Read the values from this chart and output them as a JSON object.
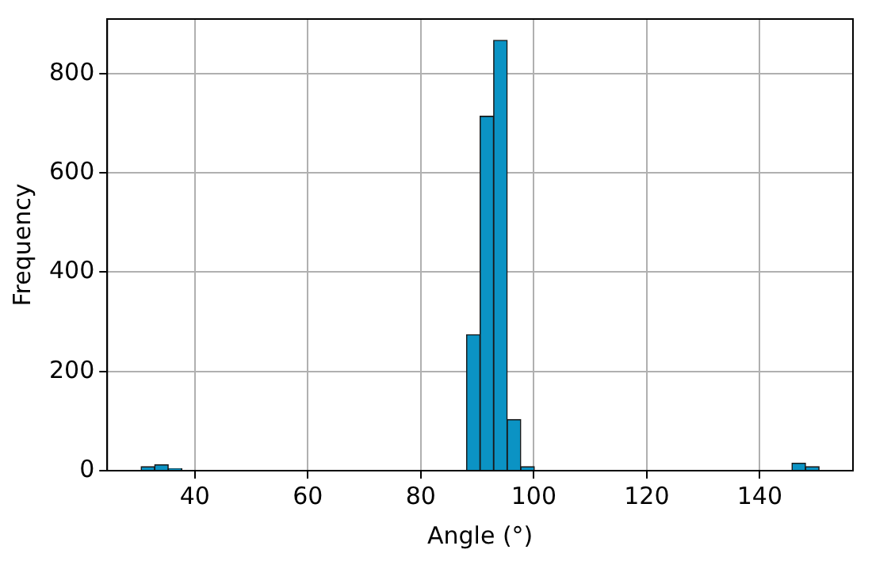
{
  "chart_data": {
    "type": "histogram",
    "xlabel": "Angle (°)",
    "ylabel": "Frequency",
    "bins": [
      30.5,
      32.9,
      35.3,
      37.7,
      40.1,
      42.5,
      44.9,
      47.3,
      49.7,
      52.1,
      54.5,
      56.9,
      59.3,
      61.7,
      64.1,
      66.5,
      68.9,
      71.3,
      73.7,
      76.1,
      78.5,
      80.9,
      83.3,
      85.7,
      88.1,
      90.5,
      92.9,
      95.3,
      97.7,
      100.1,
      102.5,
      104.9,
      107.3,
      109.7,
      112.1,
      114.5,
      116.9,
      119.3,
      121.7,
      124.1,
      126.5,
      128.9,
      131.3,
      133.7,
      136.1,
      138.5,
      140.9,
      143.3,
      145.7,
      148.1,
      150.5
    ],
    "values": [
      8,
      12,
      4,
      0,
      0,
      0,
      0,
      0,
      0,
      0,
      0,
      0,
      0,
      0,
      0,
      0,
      0,
      0,
      0,
      0,
      0,
      0,
      0,
      0,
      274,
      714,
      867,
      103,
      8,
      0,
      0,
      0,
      0,
      0,
      0,
      0,
      0,
      0,
      0,
      0,
      0,
      0,
      0,
      0,
      0,
      0,
      0,
      0,
      15,
      8
    ],
    "color": "#0b93c4",
    "xlim": [
      24.5,
      156.5
    ],
    "xticks": [
      40,
      60,
      80,
      100,
      120,
      140
    ],
    "ylim": [
      0,
      910
    ],
    "yticks": [
      0,
      200,
      400,
      600,
      800
    ],
    "grid": true,
    "legend": false
  }
}
